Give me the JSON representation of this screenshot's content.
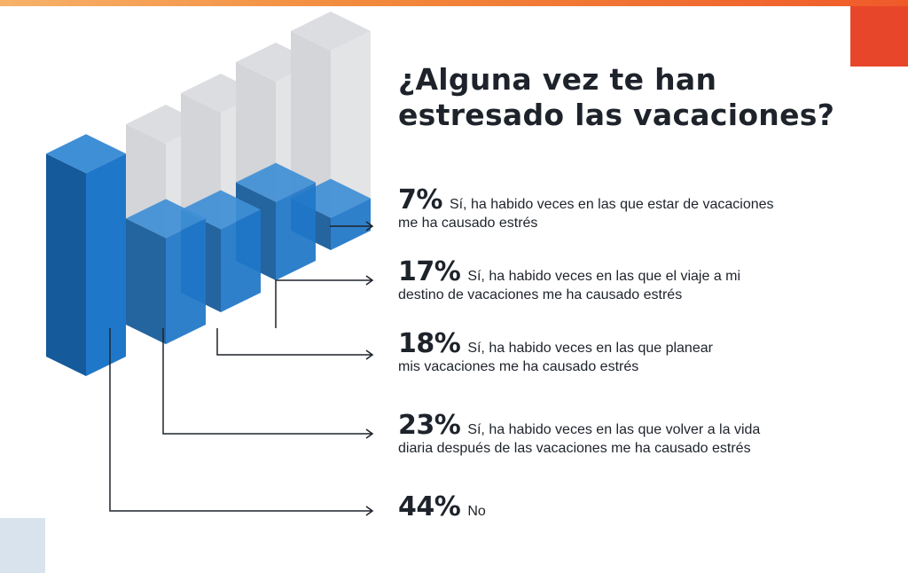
{
  "title": "¿Alguna vez te han estresado las vacaciones?",
  "colors": {
    "accent_red": "#e8462a",
    "bar_blue": "#1f77c9",
    "bar_blue_dark": "#155a9a",
    "ghost_gray": "#d9d9dc"
  },
  "chart_data": {
    "type": "bar",
    "title": "¿Alguna vez te han estresado las vacaciones?",
    "categories": [
      "No",
      "Sí, ha habido veces en las que volver a la vida diaria después de las vacaciones me ha causado estrés",
      "Sí, ha habido veces en las que planear mis vacaciones me ha causado estrés",
      "Sí, ha habido veces en las que el viaje a mi destino de vacaciones me ha causado estrés",
      "Sí, ha habido veces en las que estar de vacaciones me ha causado estrés"
    ],
    "values": [
      44,
      23,
      18,
      17,
      7
    ],
    "unit": "%",
    "style": "isometric-3d"
  },
  "items": [
    {
      "pct": "7%",
      "line1": "Sí, ha habido veces en las que estar de vacaciones",
      "line2": "me ha causado estrés"
    },
    {
      "pct": "17%",
      "line1": "Sí, ha habido veces en las que el viaje a mi",
      "line2": "destino de vacaciones me ha causado estrés"
    },
    {
      "pct": "18%",
      "line1": "Sí, ha habido veces en las que planear",
      "line2": "mis vacaciones me ha causado estrés"
    },
    {
      "pct": "23%",
      "line1": "Sí, ha habido veces en las que volver a la vida",
      "line2": "diaria después de las vacaciones me ha causado estrés"
    },
    {
      "pct": "44%",
      "line1": "No",
      "line2": ""
    }
  ]
}
